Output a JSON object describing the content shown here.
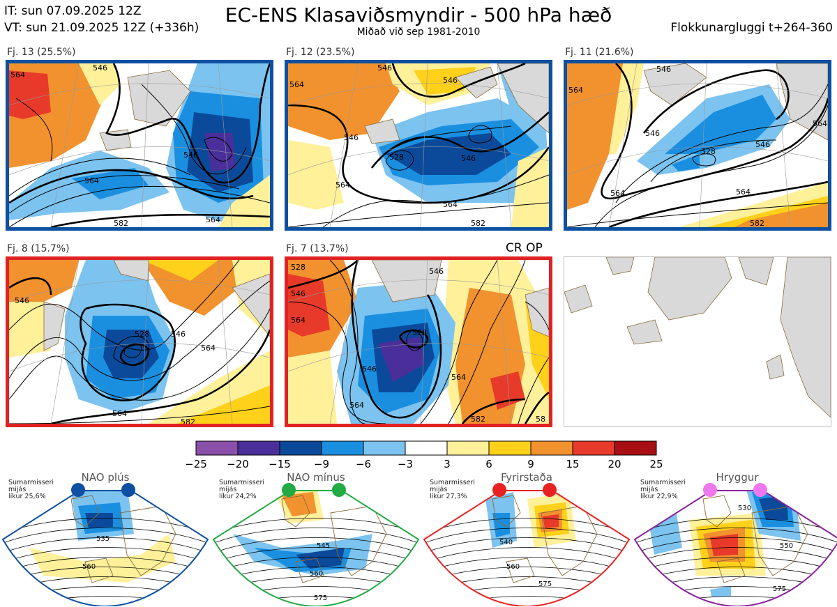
{
  "header": {
    "it": "IT: sun 07.09.2025 12Z",
    "vt": "VT: sun 21.09.2025 12Z  (+336h)",
    "title": "EC-ENS Klasaviðsmyndir - 500 hPa hæð",
    "subtitle": "Miðað við sep 1981-2010",
    "window": "Flokkunargluggi t+264-360"
  },
  "colors": {
    "blue_frame": "#0d4fa0",
    "red_frame": "#e02222",
    "land": "#d9d9d9",
    "coast": "#8a6a3a"
  },
  "clusters": [
    {
      "label": "Fj. 13 (25.5%)",
      "frame": "blue",
      "contours": [
        "564",
        "546",
        "546",
        "564",
        "564",
        "582"
      ]
    },
    {
      "label": "Fj. 12 (23.5%)",
      "frame": "blue",
      "contours": [
        "546",
        "546",
        "564",
        "528",
        "546",
        "546",
        "564",
        "564",
        "582"
      ]
    },
    {
      "label": "Fj. 11 (21.6%)",
      "frame": "blue",
      "contours": [
        "546",
        "564",
        "546",
        "528",
        "546",
        "564",
        "564",
        "564",
        "582"
      ]
    },
    {
      "label": "Fj. 8 (15.7%)",
      "frame": "red",
      "contours": [
        "546",
        "528",
        "546",
        "564",
        "564",
        "582"
      ]
    },
    {
      "label": "Fj. 7 (13.7%)",
      "frame": "red",
      "contours": [
        "528",
        "546",
        "564",
        "546",
        "528",
        "546",
        "564",
        "564",
        "582",
        "58"
      ]
    }
  ],
  "cr_op": "CR OP",
  "colorbar": {
    "ticks": [
      "−25",
      "−20",
      "−15",
      "−9",
      "−6",
      "−3",
      "3",
      "6",
      "9",
      "15",
      "20",
      "25"
    ],
    "colors": [
      "#8a4fa8",
      "#4a2f9a",
      "#0b4a9a",
      "#1a8fe0",
      "#7cc3f0",
      "#ffffff",
      "#fff09a",
      "#ffd11a",
      "#f2922e",
      "#e83a2a",
      "#a80f14"
    ]
  },
  "regimes": [
    {
      "title": "NAO plús",
      "small": [
        "Sumarmisseri",
        "mijás",
        "líkur 25,6%"
      ],
      "dot": "#0d4fa0",
      "frame": "#0d4fa0",
      "contours": [
        "535",
        "560"
      ]
    },
    {
      "title": "NAO mínus",
      "small": [
        "Sumarmisseri",
        "mijás",
        "líkur 24,2%"
      ],
      "dot": "#22aa44",
      "frame": "#22aa44",
      "contours": [
        "545",
        "560",
        "575"
      ]
    },
    {
      "title": "Fyrirstaða",
      "small": [
        "Sumarmisseri",
        "mijás",
        "líkur 27,3%"
      ],
      "dot": "#e82222",
      "frame": "#e82222",
      "contours": [
        "540",
        "560",
        "575"
      ]
    },
    {
      "title": "Hryggur",
      "small": [
        "Sumarmisseri",
        "mijás",
        "líkur 22,9%"
      ],
      "dot": "#ee77ee",
      "frame": "#882299",
      "contours": [
        "530",
        "550",
        "575"
      ]
    }
  ]
}
